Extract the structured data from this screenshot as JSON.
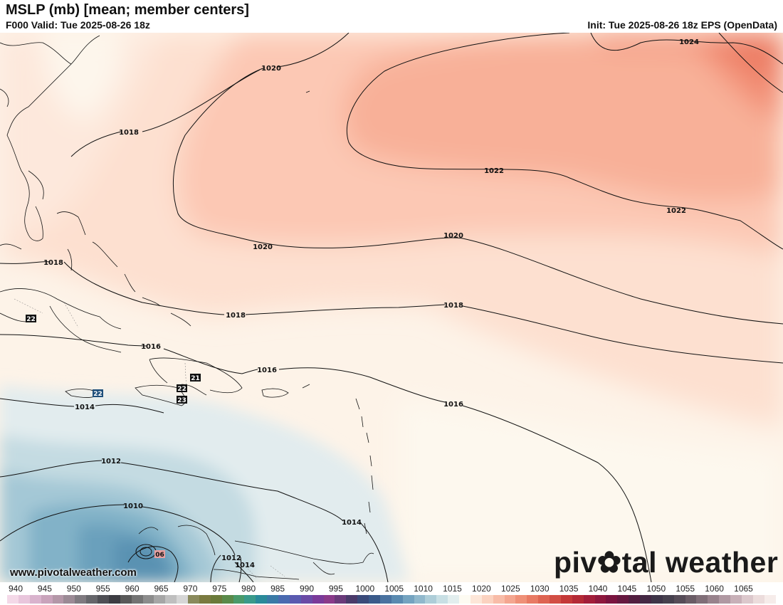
{
  "header": {
    "title": "MSLP (mb) [mean; member centers]",
    "valid": "F000 Valid: Tue 2025-08-26 18z",
    "init": "Init: Tue 2025-08-26 18z EPS (OpenData)"
  },
  "isobar_labels": [
    {
      "text": "1024"
    },
    {
      "text": "1022"
    },
    {
      "text": "1022"
    },
    {
      "text": "1020"
    },
    {
      "text": "1020"
    },
    {
      "text": "1020"
    },
    {
      "text": "1018"
    },
    {
      "text": "1018"
    },
    {
      "text": "1018"
    },
    {
      "text": "1018"
    },
    {
      "text": "1016"
    },
    {
      "text": "1016"
    },
    {
      "text": "1016"
    },
    {
      "text": "1014"
    },
    {
      "text": "1014"
    },
    {
      "text": "1014"
    },
    {
      "text": "1012"
    },
    {
      "text": "1012"
    },
    {
      "text": "1010"
    }
  ],
  "member_centers": [
    {
      "text": "22",
      "type": "high"
    },
    {
      "text": "22",
      "type": "high"
    },
    {
      "text": "21",
      "type": "high"
    },
    {
      "text": "22",
      "type": "high"
    },
    {
      "text": "23",
      "type": "high"
    },
    {
      "text": "06",
      "type": "low"
    }
  ],
  "scale": {
    "labels": [
      "940",
      "945",
      "950",
      "955",
      "960",
      "965",
      "970",
      "975",
      "980",
      "985",
      "990",
      "995",
      "1000",
      "1005",
      "1010",
      "1015",
      "1020",
      "1025",
      "1030",
      "1035",
      "1040",
      "1045",
      "1050",
      "1055",
      "1060",
      "1065"
    ],
    "colors": [
      "#f4d9e8",
      "#e9c6dc",
      "#d9b3cd",
      "#c9a3bb",
      "#b497a8",
      "#9b8a95",
      "#7f7a80",
      "#66666b",
      "#4f4f55",
      "#3c3c42",
      "#595959",
      "#737373",
      "#8c8c8c",
      "#a6a6a6",
      "#bfbfbf",
      "#d6d6d6",
      "#8a8a5c",
      "#7a7a3f",
      "#6a7a3a",
      "#5a8a4a",
      "#4a9a6a",
      "#3a9a8a",
      "#2a8a9a",
      "#3a7aa6",
      "#4a6ab0",
      "#5a5ab0",
      "#6a4aa6",
      "#7a3a9a",
      "#8a3a8a",
      "#6a3a7a",
      "#4a3a6a",
      "#3a4a7a",
      "#3a5a8a",
      "#4a72a0",
      "#5a8ab0",
      "#74a3c0",
      "#90b8cc",
      "#adcdd8",
      "#c8dfe4",
      "#e2eeee",
      "#fdfbf2",
      "#fde6d8",
      "#fbd2c0",
      "#f8bca8",
      "#f4a690",
      "#ef9078",
      "#e87a64",
      "#de6452",
      "#d24e44",
      "#c43838",
      "#b42a36",
      "#a21e3a",
      "#8e183e",
      "#7a1440",
      "#661840",
      "#521e40",
      "#442844",
      "#3e3448",
      "#46404e",
      "#564c58",
      "#6a5c66",
      "#806e78",
      "#98828c",
      "#b098a2",
      "#c8b0b8",
      "#dcc8cc",
      "#ecdcdc",
      "#f6ecea"
    ]
  },
  "website": "www.pivotalweather.com",
  "logo": {
    "part1": "piv",
    "gear": "✿",
    "part2": "tal weather"
  }
}
